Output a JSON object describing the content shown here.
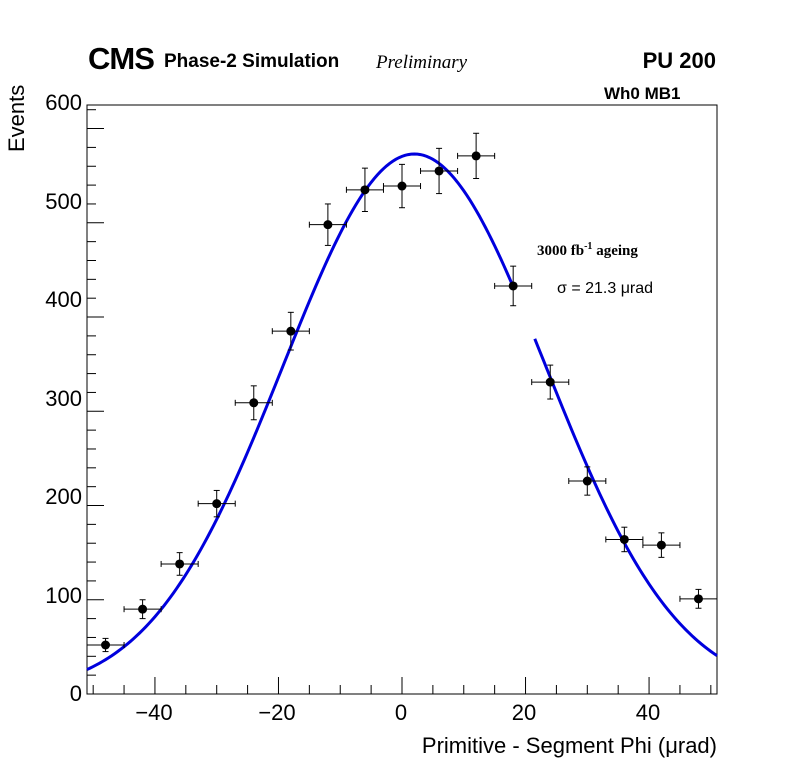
{
  "header": {
    "experiment": "CMS",
    "simulation": "Phase-2 Simulation",
    "status": "Preliminary",
    "pileup": "PU 200"
  },
  "annotations": {
    "station": "Wh0 MB1",
    "ageing_main": "3000 fb",
    "ageing_sup": "-1",
    "ageing_rest": " ageing",
    "sigma_text": "σ = 21.3 μrad"
  },
  "colors": {
    "fit": "#0000dd",
    "points": "#000000",
    "axes": "#000000"
  },
  "chart_data": {
    "type": "scatter",
    "title": "",
    "xlabel": "Primitive - Segment Phi (μrad)",
    "ylabel": "Events",
    "xlim": [
      -51,
      51
    ],
    "ylim": [
      0,
      625
    ],
    "xticks": [
      -40,
      -20,
      0,
      20,
      40
    ],
    "xtick_labels": [
      "−40",
      "−20",
      "0",
      "20",
      "40"
    ],
    "yticks": [
      0,
      100,
      200,
      300,
      400,
      500,
      600
    ],
    "ytick_labels": [
      "0",
      "100",
      "200",
      "300",
      "400",
      "500",
      "600"
    ],
    "grid": false,
    "series": [
      {
        "name": "data",
        "bin_half_width": 3,
        "x": [
          -48,
          -42,
          -36,
          -30,
          -24,
          -18,
          -12,
          -6,
          0,
          6,
          12,
          18,
          24,
          30,
          36,
          42,
          48
        ],
        "y": [
          52,
          90,
          138,
          202,
          309,
          385,
          498,
          535,
          539,
          555,
          571,
          433,
          331,
          226,
          164,
          158,
          101
        ],
        "yerr": [
          7,
          10,
          12,
          14,
          18,
          20,
          22,
          23,
          23,
          24,
          24,
          21,
          18,
          15,
          13,
          13,
          10
        ]
      },
      {
        "name": "fit",
        "type": "line",
        "mu": 2,
        "sigma": 21.3,
        "amplitude": 573,
        "segments": [
          [
            -51,
            18
          ],
          [
            21.5,
            51
          ]
        ]
      }
    ]
  }
}
